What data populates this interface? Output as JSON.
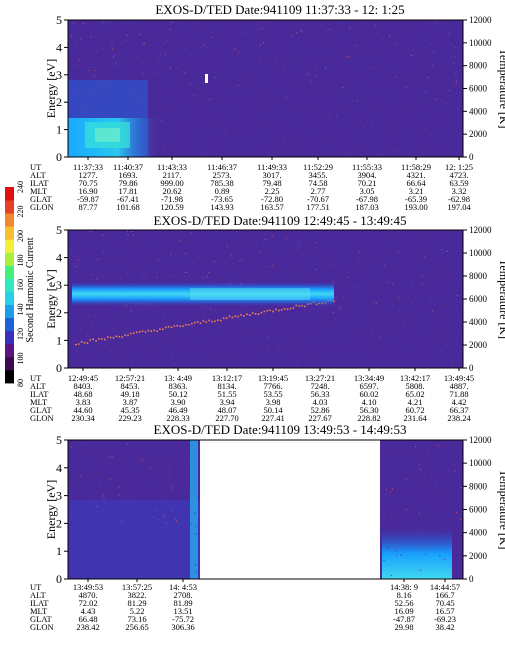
{
  "chart_data": {
    "type": "heatmap",
    "colorbar": {
      "label": "Second Harmonic Current",
      "ticks": [
        "80",
        "100",
        "120",
        "140",
        "160",
        "180",
        "200",
        "220",
        "240"
      ],
      "colors": [
        "#000000",
        "#3a0a55",
        "#5b1480",
        "#3a2fb8",
        "#1f5fd8",
        "#1c9fe8",
        "#25d0e8",
        "#2ee8c0",
        "#44f07a",
        "#a8f03c",
        "#f0f03a",
        "#f8c030",
        "#f08830",
        "#e84028",
        "#e01010"
      ]
    },
    "panels": [
      {
        "title": "EXOS-D/TED   Date:941109  11:37:33 - 12: 1:25",
        "ylabel": "Energy [eV]",
        "y2label": "Temperature [K]",
        "ylim": [
          0,
          5
        ],
        "y2lim": [
          0,
          12000
        ],
        "yticks": [
          "0",
          "1",
          "2",
          "3",
          "4",
          "5"
        ],
        "y2ticks": [
          "0",
          "2000",
          "4000",
          "6000",
          "8000",
          "10000",
          "12000"
        ],
        "row_labels": [
          "UT",
          "ALT",
          "ILAT",
          "MLT",
          "GLAT",
          "GLON"
        ],
        "columns": [
          [
            "11:37:33",
            "1277.",
            "70.75",
            "16.90",
            "-59.87",
            "87.77"
          ],
          [
            "11:40:37",
            "1693.",
            "79.86",
            "17.81",
            "-67.41",
            "101.68"
          ],
          [
            "11:43:33",
            "2117.",
            "999.00",
            "20.62",
            "-71.98",
            "120.59"
          ],
          [
            "11:46:37",
            "2573.",
            "785.38",
            "0.89",
            "-73.65",
            "143.93"
          ],
          [
            "11:49:33",
            "3017.",
            "79.48",
            "2.25",
            "-72.80",
            "163.57"
          ],
          [
            "11:52:29",
            "3455.",
            "74.58",
            "2.77",
            "-70.67",
            "177.51"
          ],
          [
            "11:55:33",
            "3904.",
            "70.21",
            "3.05",
            "-67.98",
            "187.03"
          ],
          [
            "11:58:29",
            "4321.",
            "66.64",
            "3.21",
            "-65.39",
            "193.00"
          ],
          [
            "12: 1:25",
            "4723.",
            "63.59",
            "3.32",
            "-62.98",
            "197.04"
          ]
        ]
      },
      {
        "title": "EXOS-D/TED   Date:941109  12:49:45 - 13:49:45",
        "ylabel": "Energy [eV]",
        "y2label": "Temperature [K]",
        "ylim": [
          0,
          5
        ],
        "y2lim": [
          0,
          12000
        ],
        "yticks": [
          "0",
          "1",
          "2",
          "3",
          "4",
          "5"
        ],
        "y2ticks": [
          "0",
          "2000",
          "4000",
          "6000",
          "8000",
          "10000",
          "12000"
        ],
        "row_labels": [
          "UT",
          "ALT",
          "ILAT",
          "MLT",
          "GLAT",
          "GLON"
        ],
        "columns": [
          [
            "12:49:45",
            "8403.",
            "48.68",
            "3.83",
            "44.60",
            "230.34"
          ],
          [
            "12:57:21",
            "8453.",
            "49.18",
            "3.87",
            "45.35",
            "229.23"
          ],
          [
            "13: 4:49",
            "8363.",
            "50.12",
            "3.90",
            "46.49",
            "228.33"
          ],
          [
            "13:12:17",
            "8134.",
            "51.55",
            "3.94",
            "48.07",
            "227.70"
          ],
          [
            "13:19:45",
            "7766.",
            "53.55",
            "3.98",
            "50.14",
            "227.41"
          ],
          [
            "13:27:21",
            "7248.",
            "56.33",
            "4.03",
            "52.86",
            "227.67"
          ],
          [
            "13:34:49",
            "6597.",
            "60.02",
            "4.10",
            "56.30",
            "228.82"
          ],
          [
            "13:42:17",
            "5808.",
            "65.02",
            "4.21",
            "60.72",
            "231.64"
          ],
          [
            "13:49:45",
            "4887.",
            "71.88",
            "4.42",
            "66.37",
            "238.24"
          ]
        ]
      },
      {
        "title": "EXOS-D/TED   Date:941109  13:49:53 - 14:49:53",
        "ylabel": "Energy [eV]",
        "y2label": "Temperature [K]",
        "ylim": [
          0,
          5
        ],
        "y2lim": [
          0,
          12000
        ],
        "yticks": [
          "0",
          "1",
          "2",
          "3",
          "4",
          "5"
        ],
        "y2ticks": [
          "0",
          "2000",
          "4000",
          "6000",
          "8000",
          "10000",
          "12000"
        ],
        "row_labels": [
          "UT",
          "ALT",
          "ILAT",
          "MLT",
          "GLAT",
          "GLON"
        ],
        "columns": [
          [
            "13:49:53",
            "4870.",
            "72.02",
            "4.43",
            "66.48",
            "238.42"
          ],
          [
            "13:57:25",
            "3822.",
            "81.29",
            "5.22",
            "73.16",
            "256.65"
          ],
          [
            "14: 4:53",
            "2708.",
            "81.89",
            "13.51",
            "-75.72",
            "306.36"
          ],
          [
            "14:38: 9",
            "8.16",
            "52.56",
            "16.09",
            "-47.87",
            "29.98"
          ],
          [
            "14:44:57",
            "166.7",
            "70.45",
            "16.57",
            "-69.23",
            "38.42"
          ]
        ]
      }
    ]
  }
}
